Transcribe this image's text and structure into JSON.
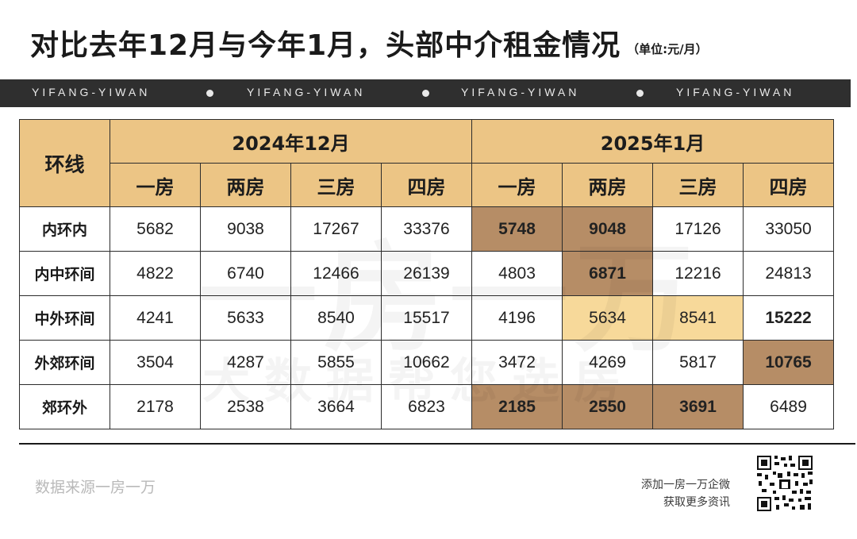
{
  "title": {
    "main": "对比去年12月与今年1月，头部中介租金情况",
    "unit": "（单位:元/月）"
  },
  "banner": {
    "items": [
      "YIFANG-YIWAN",
      "YIFANG-YIWAN",
      "YIFANG-YIWAN",
      "YIFANG-YIWAN"
    ]
  },
  "table": {
    "corner": "环线",
    "periods": [
      "2024年12月",
      "2025年1月"
    ],
    "room_types": [
      "一房",
      "两房",
      "三房",
      "四房",
      "一房",
      "两房",
      "三房",
      "四房"
    ],
    "rows": [
      {
        "label": "内环内",
        "values": [
          "5682",
          "9038",
          "17267",
          "33376",
          "5748",
          "9048",
          "17126",
          "33050"
        ]
      },
      {
        "label": "内中环间",
        "values": [
          "4822",
          "6740",
          "12466",
          "26139",
          "4803",
          "6871",
          "12216",
          "24813"
        ]
      },
      {
        "label": "中外环间",
        "values": [
          "4241",
          "5633",
          "8540",
          "15517",
          "4196",
          "5634",
          "8541",
          "15222"
        ]
      },
      {
        "label": "外郊环间",
        "values": [
          "3504",
          "4287",
          "5855",
          "10662",
          "3472",
          "4269",
          "5817",
          "10765"
        ]
      },
      {
        "label": "郊环外",
        "values": [
          "2178",
          "2538",
          "3664",
          "6823",
          "2185",
          "2550",
          "3691",
          "6489"
        ]
      }
    ],
    "colors": {
      "header": "#ecc585",
      "highlight_dark": "#b68d66",
      "highlight_light": "#f7d99a",
      "border": "#2c2c2c"
    }
  },
  "watermark": {
    "line1": "一房一万",
    "line2": "大数据帮您选房"
  },
  "footer": {
    "source": "数据来源一房一万",
    "wechat_line1": "添加一房一万企微",
    "wechat_line2": "获取更多资讯",
    "qr_icon": "qr-code-icon"
  }
}
